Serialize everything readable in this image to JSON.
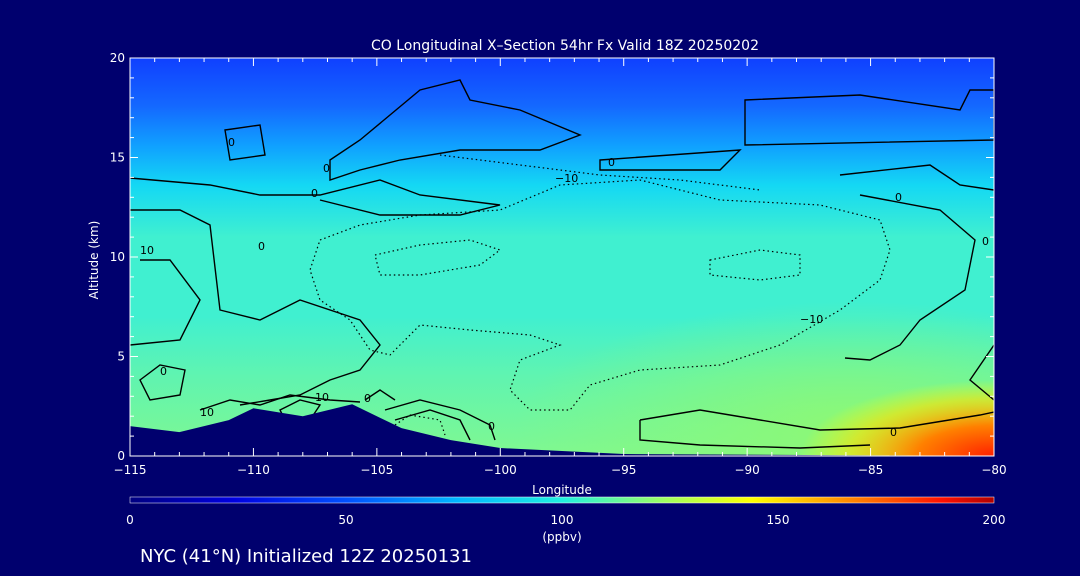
{
  "chart_data": {
    "type": "heatmap",
    "title": "CO Longitudinal X–Section 54hr  Fx Valid 18Z 20250202",
    "xlabel": "Longitude",
    "ylabel": "Altitude (km)",
    "xlim": [
      -115,
      -80
    ],
    "ylim": [
      0,
      20
    ],
    "x_ticks": [
      -115,
      -110,
      -105,
      -100,
      -95,
      -90,
      -85,
      -80
    ],
    "x_tick_labels": [
      "−115",
      "−110",
      "−105",
      "−100",
      "−95",
      "−90",
      "−85",
      "−80"
    ],
    "y_ticks": [
      0,
      5,
      10,
      15,
      20
    ],
    "y_tick_labels": [
      "0",
      "5",
      "10",
      "15",
      "20"
    ],
    "colorbar": {
      "min": 0,
      "max": 200,
      "ticks": [
        0,
        50,
        100,
        150,
        200
      ],
      "tick_labels": [
        "0",
        "50",
        "100",
        "150",
        "200"
      ],
      "unit": "(ppbv)"
    },
    "footer": "NYC (41°N) Initialized 12Z 20250131",
    "contour_labels": [
      "0",
      "−10",
      "10"
    ],
    "field_description_bands": [
      {
        "alt_km": 19,
        "co_ppbv": 35
      },
      {
        "alt_km": 16,
        "co_ppbv": 45
      },
      {
        "alt_km": 14,
        "co_ppbv": 60
      },
      {
        "alt_km": 12,
        "co_ppbv": 70
      },
      {
        "alt_km": 8,
        "co_ppbv": 75
      },
      {
        "alt_km": 4,
        "co_ppbv": 85
      },
      {
        "alt_km": 1,
        "co_ppbv": 95
      }
    ],
    "terrain_km": [
      {
        "lon": -115,
        "alt": 1.5
      },
      {
        "lon": -113,
        "alt": 1.2
      },
      {
        "lon": -111,
        "alt": 1.8
      },
      {
        "lon": -110,
        "alt": 2.4
      },
      {
        "lon": -108,
        "alt": 2.0
      },
      {
        "lon": -106,
        "alt": 2.6
      },
      {
        "lon": -104,
        "alt": 1.4
      },
      {
        "lon": -102,
        "alt": 0.8
      },
      {
        "lon": -100,
        "alt": 0.4
      },
      {
        "lon": -95,
        "alt": 0.1
      },
      {
        "lon": -80,
        "alt": 0.0
      }
    ]
  },
  "colors": {
    "background": "#00006e",
    "axis": "#ffffff",
    "contour": "#000000",
    "terrain": "#00006e"
  }
}
